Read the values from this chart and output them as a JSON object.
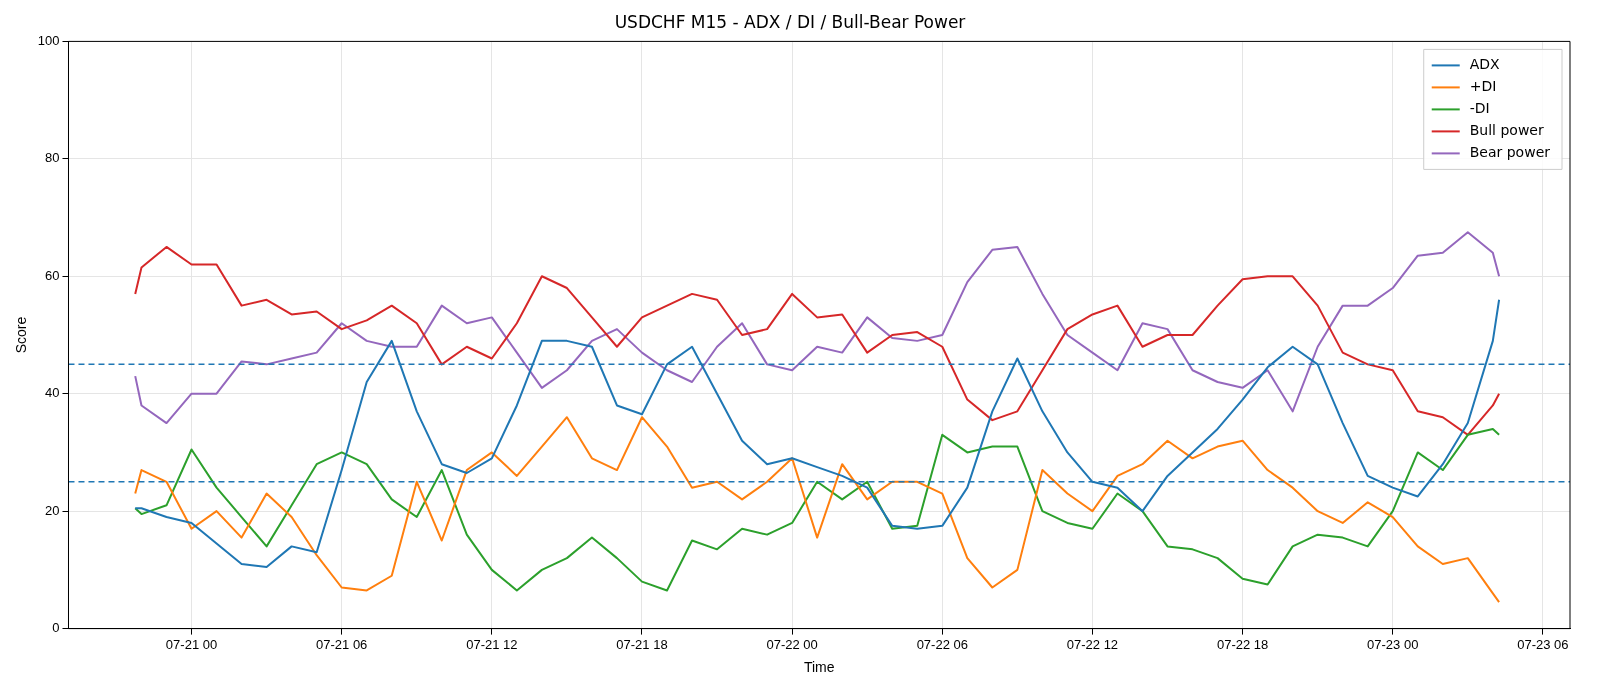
{
  "chart_data": {
    "type": "line",
    "title": "USDCHF M15 - ADX / DI / Bull-Bear Power",
    "xlabel": "Time",
    "ylabel": "Score",
    "x": [
      "--07-20T21:45",
      "--07-20T22:00",
      "--07-20T23:00",
      "--07-21T00:00",
      "--07-21T01:00",
      "--07-21T02:00",
      "--07-21T03:00",
      "--07-21T04:00",
      "--07-21T05:00",
      "--07-21T06:00",
      "--07-21T07:00",
      "--07-21T08:00",
      "--07-21T09:00",
      "--07-21T10:00",
      "--07-21T11:00",
      "--07-21T12:00",
      "--07-21T13:00",
      "--07-21T14:00",
      "--07-21T15:00",
      "--07-21T16:00",
      "--07-21T17:00",
      "--07-21T18:00",
      "--07-21T19:00",
      "--07-21T20:00",
      "--07-21T21:00",
      "--07-21T22:00",
      "--07-21T23:00",
      "--07-22T00:00",
      "--07-22T01:00",
      "--07-22T02:00",
      "--07-22T03:00",
      "--07-22T04:00",
      "--07-22T05:00",
      "--07-22T06:00",
      "--07-22T07:00",
      "--07-22T08:00",
      "--07-22T09:00",
      "--07-22T10:00",
      "--07-22T11:00",
      "--07-22T12:00",
      "--07-22T13:00",
      "--07-22T14:00",
      "--07-22T15:00",
      "--07-22T16:00",
      "--07-22T17:00",
      "--07-22T18:00",
      "--07-22T19:00",
      "--07-22T20:00",
      "--07-22T21:00",
      "--07-22T22:00",
      "--07-22T23:00",
      "--07-23T00:00",
      "--07-23T01:00",
      "--07-23T02:00",
      "--07-23T03:00",
      "--07-23T04:00",
      "--07-23T04:15"
    ],
    "series": [
      {
        "name": "ADX",
        "color": "#1f77b4",
        "values": [
          20.5,
          20.5,
          19,
          18,
          14.5,
          11,
          10.5,
          14,
          13,
          27,
          42,
          49,
          37,
          28,
          26.5,
          29,
          38,
          49,
          49,
          48,
          38,
          36.5,
          45,
          48,
          40,
          32,
          28,
          29,
          27.5,
          26,
          24,
          17.5,
          17,
          17.5,
          24,
          37,
          46,
          37,
          30,
          25,
          24,
          20,
          26,
          30,
          34,
          39,
          44.5,
          48,
          45,
          35,
          26,
          24,
          22.5,
          28,
          35,
          49,
          56
        ]
      },
      {
        "name": "+DI",
        "color": "#ff7f0e",
        "values": [
          23,
          27,
          25,
          17,
          20,
          15.5,
          23,
          19,
          12.5,
          7,
          6.5,
          9,
          25,
          15,
          27,
          30,
          26,
          31,
          36,
          29,
          27,
          36,
          31,
          24,
          25,
          22,
          25,
          29,
          15.5,
          28,
          22,
          25,
          25,
          23,
          12,
          7,
          10,
          27,
          23,
          20,
          26,
          28,
          32,
          29,
          31,
          32,
          27,
          24,
          20,
          18,
          21.5,
          19,
          14,
          11,
          12,
          6,
          4.5
        ]
      },
      {
        "name": "-DI",
        "color": "#2ca02c",
        "values": [
          20.5,
          19.5,
          21,
          30.5,
          24,
          19,
          14,
          21,
          28,
          30,
          28,
          22,
          19,
          27,
          16,
          10,
          6.5,
          10,
          12,
          15.5,
          12,
          8,
          6.5,
          15,
          13.5,
          17,
          16,
          18,
          25,
          22,
          25,
          17,
          17.5,
          33,
          30,
          31,
          31,
          20,
          18,
          17,
          23,
          20,
          14,
          13.5,
          12,
          8.5,
          7.5,
          14,
          16,
          15.5,
          14,
          20,
          30,
          27,
          33,
          34,
          33
        ]
      },
      {
        "name": "Bull power",
        "color": "#d62728",
        "values": [
          57,
          61.5,
          65,
          62,
          62,
          55,
          56,
          53.5,
          54,
          51,
          52.5,
          55,
          52,
          45,
          48,
          46,
          52,
          60,
          58,
          53,
          48,
          53,
          55,
          57,
          56,
          50,
          51,
          57,
          53,
          53.5,
          47,
          50,
          50.5,
          48,
          39,
          35.5,
          37,
          44,
          51,
          53.5,
          55,
          48,
          50,
          50,
          55,
          59.5,
          60,
          60,
          55,
          47,
          45,
          44,
          37,
          36,
          33,
          38,
          40
        ]
      },
      {
        "name": "Bear power",
        "color": "#9467bd",
        "values": [
          43,
          38,
          35,
          40,
          40,
          45.5,
          45,
          46,
          47,
          52,
          49,
          48,
          48,
          55,
          52,
          53,
          47,
          41,
          44,
          49,
          51,
          47,
          44,
          42,
          48,
          52,
          45,
          44,
          48,
          47,
          53,
          49.5,
          49,
          50,
          59,
          64.5,
          65,
          57,
          50,
          47,
          44,
          52,
          51,
          44,
          42,
          41,
          44,
          37,
          48,
          55,
          55,
          58,
          63.5,
          64,
          67.5,
          64,
          60
        ]
      }
    ],
    "xlim": [
      "--07-20T19:05",
      "--07-23T07:05"
    ],
    "xticks": [
      {
        "value": "--07-21T00:00",
        "label": "07-21 00"
      },
      {
        "value": "--07-21T06:00",
        "label": "07-21 06"
      },
      {
        "value": "--07-21T12:00",
        "label": "07-21 12"
      },
      {
        "value": "--07-21T18:00",
        "label": "07-21 18"
      },
      {
        "value": "--07-22T00:00",
        "label": "07-22 00"
      },
      {
        "value": "--07-22T06:00",
        "label": "07-22 06"
      },
      {
        "value": "--07-22T12:00",
        "label": "07-22 12"
      },
      {
        "value": "--07-22T18:00",
        "label": "07-22 18"
      },
      {
        "value": "--07-23T00:00",
        "label": "07-23 00"
      },
      {
        "value": "--07-23T06:00",
        "label": "07-23 06"
      }
    ],
    "ylim": [
      0,
      100
    ],
    "yticks": [
      0,
      20,
      40,
      60,
      80,
      100
    ],
    "ref_lines": [
      {
        "axis": "y",
        "value": 45,
        "color": "#1f77b4",
        "line_style": "dashed"
      },
      {
        "axis": "y",
        "value": 25,
        "color": "#1f77b4",
        "line_style": "dashed"
      }
    ],
    "grid": true,
    "legend": "top right",
    "marker": "none",
    "line_style": "solid"
  }
}
